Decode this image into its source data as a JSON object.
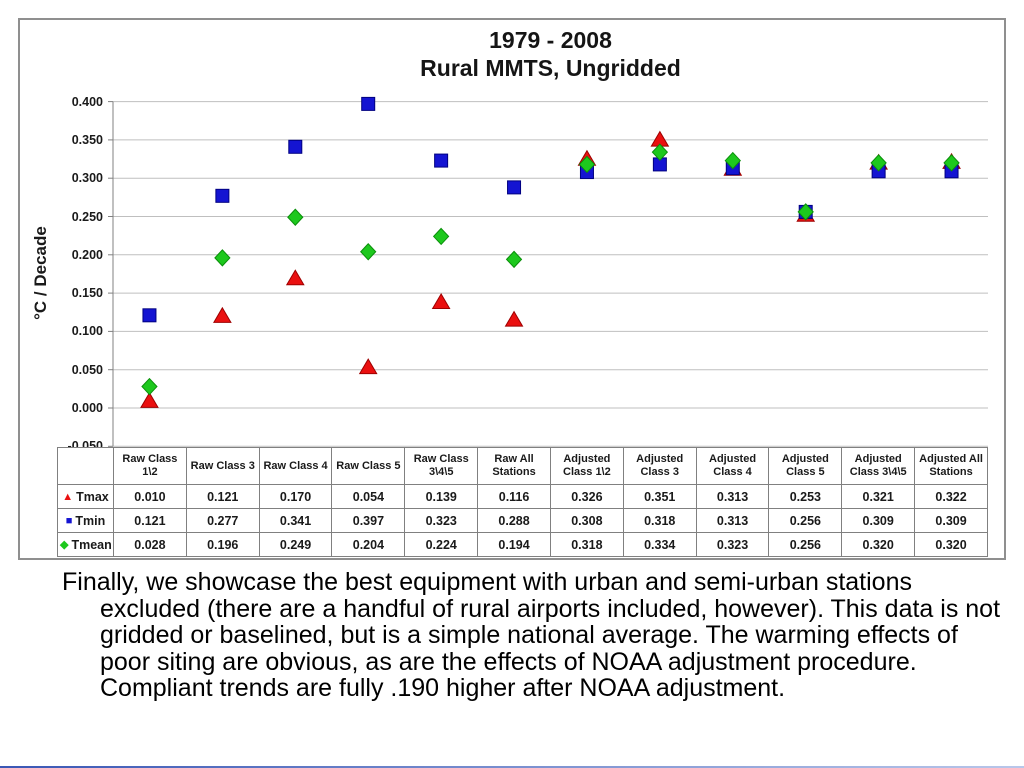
{
  "slide": {
    "caption": "Finally, we showcase the best equipment with urban and semi-urban stations excluded (there are a handful of rural airports included, however). This data is not gridded or baselined, but is a simple national average. The warming effects of poor siting are obvious, as are the effects of NOAA adjustment procedure. Compliant trends are fully .190 higher after NOAA adjustment."
  },
  "chart": {
    "title_line1": "1979 - 2008",
    "title_line2": "Rural MMTS, Ungridded",
    "y_axis_label": "°C / Decade"
  },
  "chart_data": {
    "type": "scatter",
    "title": "1979 - 2008 Rural MMTS, Ungridded",
    "xlabel": "",
    "ylabel": "°C / Decade",
    "ylim": [
      -0.05,
      0.4
    ],
    "ytick_step": 0.05,
    "yticks": [
      "0.400",
      "0.350",
      "0.300",
      "0.250",
      "0.200",
      "0.150",
      "0.100",
      "0.050",
      "0.000",
      "-0.050"
    ],
    "grid": "horizontal",
    "legend_position": "table-left",
    "categories": [
      "Raw Class 1\\2",
      "Raw Class 3",
      "Raw Class 4",
      "Raw Class 5",
      "Raw Class 3\\4\\5",
      "Raw All Stations",
      "Adjusted Class 1\\2",
      "Adjusted Class 3",
      "Adjusted Class 4",
      "Adjusted Class 5",
      "Adjusted Class 3\\4\\5",
      "Adjusted All Stations"
    ],
    "series": [
      {
        "name": "Tmax",
        "marker": "triangle",
        "color": "#ea1010",
        "edge": "#9e0000",
        "values": [
          0.01,
          0.121,
          0.17,
          0.054,
          0.139,
          0.116,
          0.326,
          0.351,
          0.313,
          0.253,
          0.321,
          0.322
        ]
      },
      {
        "name": "Tmin",
        "marker": "square",
        "color": "#1414d2",
        "edge": "#000080",
        "values": [
          0.121,
          0.277,
          0.341,
          0.397,
          0.323,
          0.288,
          0.308,
          0.318,
          0.313,
          0.256,
          0.309,
          0.309
        ]
      },
      {
        "name": "Tmean",
        "marker": "diamond",
        "color": "#1dc81d",
        "edge": "#0a8f0a",
        "values": [
          0.028,
          0.196,
          0.249,
          0.204,
          0.224,
          0.194,
          0.318,
          0.334,
          0.323,
          0.256,
          0.32,
          0.32
        ]
      }
    ],
    "colors": {
      "grid": "#bfbfbf",
      "axis": "#808080",
      "table_border": "#808080"
    }
  }
}
